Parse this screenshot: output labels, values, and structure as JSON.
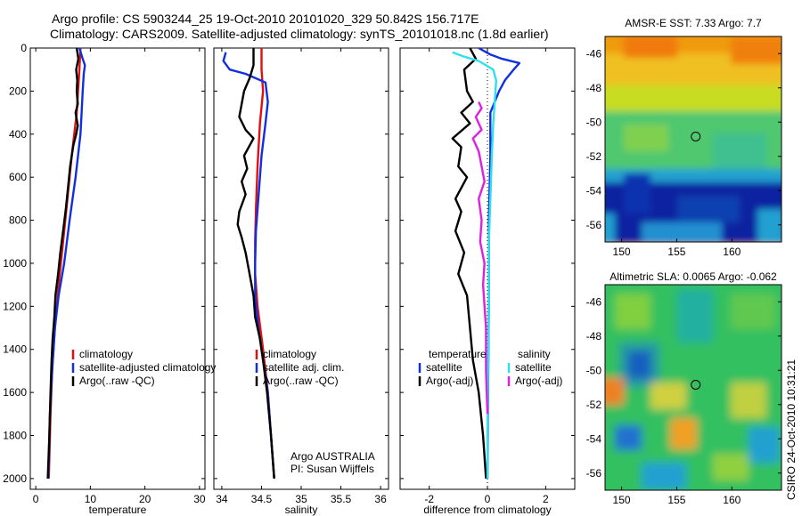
{
  "title_lines": [
    "Argo profile: CS 5903244_25 19-Oct-2010 20101020_329 50.842S 156.717E",
    "Climatology: CARS2009. Satellite-adjusted climatology: synTS_20101018.nc (1.8d earlier)"
  ],
  "colors": {
    "climatology": "#e01010",
    "satellite": "#1030e0",
    "argo": "#000000",
    "sat_diff": "#30e0f0",
    "argo_adj_diff": "#e020e0"
  },
  "chart_data": [
    {
      "type": "line",
      "xlabel": "temperature",
      "xlim": [
        -1,
        31
      ],
      "ylim": [
        2050,
        0
      ],
      "xticks": [
        0,
        10,
        20,
        30
      ],
      "yticks": [
        0,
        200,
        400,
        600,
        800,
        1000,
        1200,
        1400,
        1600,
        1800,
        2000
      ],
      "legend": [
        "climatology",
        "satellite-adjusted climatology",
        "Argo(..raw -QC)"
      ],
      "series": [
        {
          "name": "climatology",
          "color": "#e01010",
          "points": [
            [
              8.2,
              0
            ],
            [
              8.0,
              100
            ],
            [
              7.5,
              300
            ],
            [
              6.6,
              500
            ],
            [
              5.8,
              700
            ],
            [
              5.0,
              900
            ],
            [
              4.2,
              1100
            ],
            [
              3.5,
              1300
            ],
            [
              3.0,
              1500
            ],
            [
              2.7,
              1700
            ],
            [
              2.4,
              2000
            ]
          ]
        },
        {
          "name": "satellite-adjusted climatology",
          "color": "#1030e0",
          "points": [
            [
              8.0,
              0
            ],
            [
              8.6,
              50
            ],
            [
              9.0,
              80
            ],
            [
              8.8,
              120
            ],
            [
              8.6,
              200
            ],
            [
              8.4,
              300
            ],
            [
              8.2,
              400
            ],
            [
              7.3,
              600
            ],
            [
              6.2,
              800
            ],
            [
              5.2,
              1000
            ],
            [
              4.2,
              1150
            ],
            [
              3.5,
              1300
            ],
            [
              3.0,
              1500
            ],
            [
              2.6,
              1700
            ],
            [
              2.3,
              2000
            ]
          ]
        },
        {
          "name": "Argo(..raw -QC)",
          "color": "#000000",
          "points": [
            [
              7.5,
              0
            ],
            [
              7.8,
              50
            ],
            [
              7.4,
              100
            ],
            [
              7.6,
              150
            ],
            [
              7.5,
              200
            ],
            [
              7.7,
              260
            ],
            [
              7.3,
              300
            ],
            [
              7.7,
              360
            ],
            [
              7.4,
              400
            ],
            [
              6.9,
              450
            ],
            [
              6.3,
              550
            ],
            [
              5.9,
              650
            ],
            [
              5.5,
              750
            ],
            [
              5.0,
              850
            ],
            [
              4.5,
              950
            ],
            [
              4.1,
              1050
            ],
            [
              3.6,
              1150
            ],
            [
              3.4,
              1250
            ],
            [
              3.1,
              1350
            ],
            [
              2.9,
              1450
            ],
            [
              2.7,
              1600
            ],
            [
              2.5,
              1800
            ],
            [
              2.2,
              2000
            ]
          ]
        }
      ]
    },
    {
      "type": "line",
      "xlabel": "salinity",
      "xlim": [
        33.9,
        36.1
      ],
      "ylim": [
        2050,
        0
      ],
      "xticks": [
        34,
        34.5,
        35,
        35.5,
        36
      ],
      "tick_labels": [
        "34",
        "34.5",
        "35",
        "35.5",
        "36"
      ],
      "yticks": [
        0,
        200,
        400,
        600,
        800,
        1000,
        1200,
        1400,
        1600,
        1800,
        2000
      ],
      "legend": [
        "climatology",
        "satellite adj. clim.",
        "Argo(..raw -QC)"
      ],
      "series": [
        {
          "name": "climatology",
          "color": "#e01010",
          "points": [
            [
              34.5,
              0
            ],
            [
              34.5,
              100
            ],
            [
              34.52,
              200
            ],
            [
              34.48,
              350
            ],
            [
              34.45,
              550
            ],
            [
              34.43,
              750
            ],
            [
              34.42,
              900
            ],
            [
              34.42,
              1050
            ],
            [
              34.45,
              1200
            ],
            [
              34.52,
              1400
            ],
            [
              34.58,
              1600
            ],
            [
              34.62,
              1800
            ],
            [
              34.66,
              2000
            ]
          ]
        },
        {
          "name": "satellite adj. clim.",
          "color": "#1030e0",
          "points": [
            [
              34.05,
              20
            ],
            [
              34.02,
              60
            ],
            [
              34.1,
              100
            ],
            [
              34.3,
              120
            ],
            [
              34.55,
              160
            ],
            [
              34.58,
              250
            ],
            [
              34.55,
              350
            ],
            [
              34.5,
              500
            ],
            [
              34.46,
              700
            ],
            [
              34.43,
              850
            ],
            [
              34.42,
              1000
            ],
            [
              34.42,
              1150
            ],
            [
              34.46,
              1300
            ],
            [
              34.52,
              1450
            ],
            [
              34.58,
              1600
            ],
            [
              34.62,
              1800
            ],
            [
              34.66,
              2000
            ]
          ]
        },
        {
          "name": "Argo(..raw -QC)",
          "color": "#000000",
          "points": [
            [
              34.4,
              0
            ],
            [
              34.4,
              80
            ],
            [
              34.35,
              140
            ],
            [
              34.28,
              200
            ],
            [
              34.25,
              260
            ],
            [
              34.22,
              320
            ],
            [
              34.3,
              380
            ],
            [
              34.4,
              420
            ],
            [
              34.28,
              500
            ],
            [
              34.32,
              560
            ],
            [
              34.25,
              620
            ],
            [
              34.3,
              680
            ],
            [
              34.22,
              760
            ],
            [
              34.2,
              820
            ],
            [
              34.25,
              880
            ],
            [
              34.3,
              950
            ],
            [
              34.35,
              1050
            ],
            [
              34.4,
              1150
            ],
            [
              34.42,
              1250
            ],
            [
              34.48,
              1350
            ],
            [
              34.52,
              1450
            ],
            [
              34.57,
              1600
            ],
            [
              34.62,
              1800
            ],
            [
              34.66,
              2000
            ]
          ]
        }
      ],
      "annotation": [
        "Argo AUSTRALIA",
        "PI: Susan Wijffels"
      ]
    },
    {
      "type": "line",
      "xlabel": "difference from climatology",
      "xlim": [
        -3,
        3
      ],
      "ylim": [
        2050,
        0
      ],
      "xticks": [
        -2,
        0,
        2
      ],
      "yticks": [
        0,
        200,
        400,
        600,
        800,
        1000,
        1200,
        1400,
        1600,
        1800,
        2000
      ],
      "legend_groups": [
        {
          "title": "temperature",
          "items": [
            "satellite",
            "Argo(-adj)"
          ]
        },
        {
          "title": "salinity",
          "items": [
            "satellite",
            "Argo(-adj)"
          ]
        }
      ],
      "series": [
        {
          "name": "satellite",
          "color": "#1030e0",
          "points": [
            [
              -0.3,
              0
            ],
            [
              0.1,
              30
            ],
            [
              0.5,
              50
            ],
            [
              1.1,
              70
            ],
            [
              0.9,
              100
            ],
            [
              0.6,
              150
            ],
            [
              0.4,
              200
            ],
            [
              0.1,
              300
            ],
            [
              0.1,
              500
            ],
            [
              0.05,
              800
            ],
            [
              0.05,
              1200
            ],
            [
              0.02,
              1600
            ],
            [
              0.0,
              2000
            ]
          ]
        },
        {
          "name": "Argo(-adj)",
          "color": "#000000",
          "points": [
            [
              -0.6,
              0
            ],
            [
              -0.4,
              50
            ],
            [
              -0.8,
              100
            ],
            [
              -0.7,
              200
            ],
            [
              -0.5,
              250
            ],
            [
              -0.9,
              300
            ],
            [
              -0.6,
              350
            ],
            [
              -1.2,
              420
            ],
            [
              -0.9,
              460
            ],
            [
              -1.0,
              550
            ],
            [
              -0.7,
              600
            ],
            [
              -1.1,
              700
            ],
            [
              -0.9,
              760
            ],
            [
              -1.1,
              850
            ],
            [
              -0.8,
              950
            ],
            [
              -1.0,
              1050
            ],
            [
              -0.7,
              1150
            ],
            [
              -0.6,
              1300
            ],
            [
              -0.5,
              1450
            ],
            [
              -0.3,
              1600
            ],
            [
              -0.15,
              1800
            ],
            [
              -0.05,
              2000
            ]
          ]
        },
        {
          "name": "satellite",
          "color": "#30e0f0",
          "points": [
            [
              -1.2,
              20
            ],
            [
              -0.8,
              40
            ],
            [
              -0.3,
              60
            ],
            [
              0.2,
              100
            ],
            [
              0.3,
              150
            ],
            [
              0.25,
              250
            ],
            [
              0.2,
              350
            ],
            [
              0.15,
              500
            ],
            [
              0.1,
              700
            ],
            [
              0.05,
              900
            ],
            [
              0.05,
              1200
            ],
            [
              0.02,
              1500
            ],
            [
              0.0,
              1800
            ],
            [
              0.0,
              2000
            ]
          ]
        },
        {
          "name": "Argo(-adj)",
          "color": "#e020e0",
          "points": [
            [
              -0.3,
              250
            ],
            [
              -0.2,
              280
            ],
            [
              -0.4,
              320
            ],
            [
              -0.2,
              380
            ],
            [
              -0.5,
              420
            ],
            [
              -0.3,
              480
            ],
            [
              -0.2,
              550
            ],
            [
              -0.1,
              620
            ],
            [
              -0.3,
              700
            ],
            [
              -0.2,
              800
            ],
            [
              -0.25,
              900
            ],
            [
              -0.1,
              1000
            ],
            [
              -0.15,
              1100
            ],
            [
              -0.05,
              1300
            ],
            [
              -0.05,
              1500
            ],
            [
              0.0,
              1700
            ]
          ]
        }
      ]
    },
    {
      "type": "heatmap",
      "title": "AMSR-E SST: 7.33 Argo: 7.7",
      "xlim": [
        148.5,
        164.5
      ],
      "ylim": [
        -57,
        -45
      ],
      "xticks": [
        150,
        155,
        160
      ],
      "yticks": [
        -46,
        -48,
        -50,
        -52,
        -54,
        -56
      ],
      "marker": [
        156.717,
        -50.842
      ]
    },
    {
      "type": "heatmap",
      "title": "Altimetric SLA: 0.0065 Argo: -0.062",
      "xlim": [
        148.5,
        164.5
      ],
      "ylim": [
        -57,
        -45
      ],
      "xticks": [
        150,
        155,
        160
      ],
      "yticks": [
        -46,
        -48,
        -50,
        -52,
        -54,
        -56
      ],
      "marker": [
        156.717,
        -50.842
      ]
    }
  ],
  "credit": "CSIRO 24-Oct-2010 10:31:21"
}
